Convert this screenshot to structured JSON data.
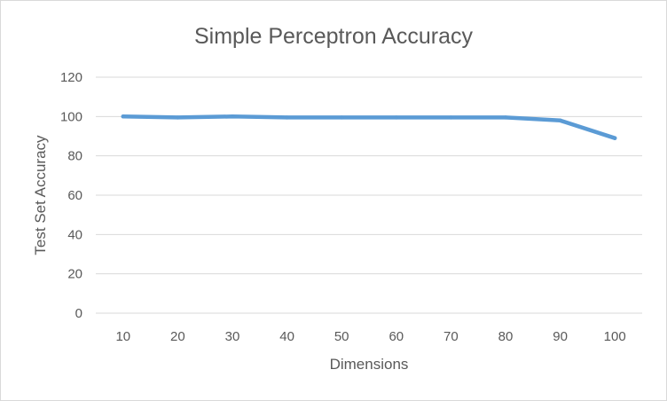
{
  "chart_data": {
    "type": "line",
    "title": "Simple Perceptron Accuracy",
    "xlabel": "Dimensions",
    "ylabel": "Test Set Accuracy",
    "categories": [
      "10",
      "20",
      "30",
      "40",
      "50",
      "60",
      "70",
      "80",
      "90",
      "100"
    ],
    "series": [
      {
        "values": [
          100,
          99.5,
          100,
          99.5,
          99.5,
          99.5,
          99.5,
          99.5,
          98,
          89
        ]
      }
    ],
    "ylim": [
      0,
      120
    ],
    "yticks": [
      "0",
      "20",
      "40",
      "60",
      "80",
      "100",
      "120"
    ],
    "grid": true,
    "legend": "none",
    "colors": {
      "series": "#5b9bd5",
      "grid": "#d9d9d9",
      "text": "#595959"
    }
  }
}
